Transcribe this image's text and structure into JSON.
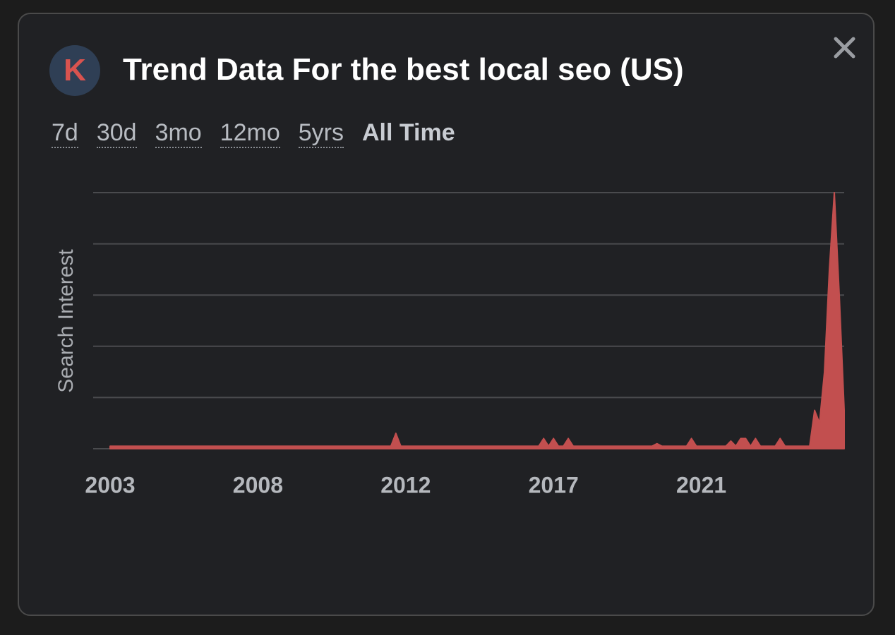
{
  "header": {
    "logo": "K",
    "title": "Trend Data For the best local seo (US)"
  },
  "tabs": [
    "7d",
    "30d",
    "3mo",
    "12mo",
    "5yrs",
    "All Time"
  ],
  "chart_data": {
    "type": "area",
    "y_label": "Search Interest",
    "color": "#c24f4f",
    "grid": true,
    "ylim": [
      0,
      100
    ],
    "yticks": [
      0,
      20,
      40,
      60,
      80,
      100
    ],
    "categories": [
      "2003",
      null,
      null,
      null,
      null,
      null,
      null,
      null,
      null,
      null,
      null,
      null,
      null,
      null,
      null,
      null,
      null,
      null,
      null,
      null,
      null,
      null,
      null,
      null,
      null,
      null,
      null,
      null,
      null,
      null,
      "2008",
      null,
      null,
      null,
      null,
      null,
      null,
      null,
      null,
      null,
      null,
      null,
      null,
      null,
      null,
      null,
      null,
      null,
      null,
      null,
      null,
      null,
      null,
      null,
      null,
      null,
      null,
      null,
      null,
      null,
      "2012",
      null,
      null,
      null,
      null,
      null,
      null,
      null,
      null,
      null,
      null,
      null,
      null,
      null,
      null,
      null,
      null,
      null,
      null,
      null,
      null,
      null,
      null,
      null,
      null,
      null,
      null,
      null,
      null,
      null,
      "2017",
      null,
      null,
      null,
      null,
      null,
      null,
      null,
      null,
      null,
      null,
      null,
      null,
      null,
      null,
      null,
      null,
      null,
      null,
      null,
      null,
      null,
      null,
      null,
      null,
      null,
      null,
      null,
      null,
      null,
      "2021",
      null,
      null,
      null,
      null,
      null,
      null,
      null,
      null,
      null,
      null,
      null,
      null,
      null,
      null,
      null,
      null,
      null,
      null,
      null,
      null,
      null,
      null,
      null,
      null,
      null,
      null,
      null,
      null,
      null
    ],
    "values": [
      1,
      1,
      1,
      1,
      1,
      1,
      1,
      1,
      1,
      1,
      1,
      1,
      1,
      1,
      1,
      1,
      1,
      1,
      1,
      1,
      1,
      1,
      1,
      1,
      1,
      1,
      1,
      1,
      1,
      1,
      1,
      1,
      1,
      1,
      1,
      1,
      1,
      1,
      1,
      1,
      1,
      1,
      1,
      1,
      1,
      1,
      1,
      1,
      1,
      1,
      1,
      1,
      1,
      1,
      1,
      1,
      1,
      1,
      6,
      1,
      1,
      1,
      1,
      1,
      1,
      1,
      1,
      1,
      1,
      1,
      1,
      1,
      1,
      1,
      1,
      1,
      1,
      1,
      1,
      1,
      1,
      1,
      1,
      1,
      1,
      1,
      1,
      1,
      4,
      1,
      4,
      1,
      1,
      4,
      1,
      1,
      1,
      1,
      1,
      1,
      1,
      1,
      1,
      1,
      1,
      1,
      1,
      1,
      1,
      1,
      1,
      2,
      1,
      1,
      1,
      1,
      1,
      1,
      4,
      1,
      1,
      1,
      1,
      1,
      1,
      1,
      3,
      1,
      4,
      4,
      1,
      4,
      1,
      1,
      1,
      1,
      4,
      1,
      1,
      1,
      1,
      1,
      1,
      15,
      10,
      30,
      70,
      100,
      60,
      15
    ]
  }
}
